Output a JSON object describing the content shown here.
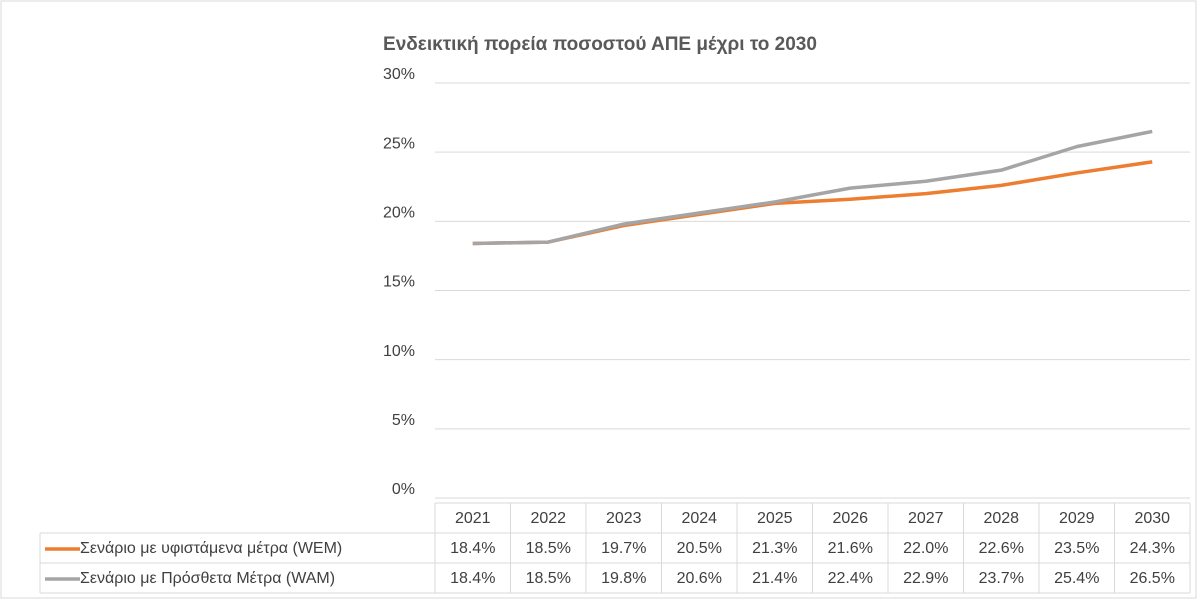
{
  "chart_data": {
    "type": "line",
    "title": "Ενδεικτική πορεία ποσοστού ΑΠΕ μέχρι το 2030",
    "categories": [
      "2021",
      "2022",
      "2023",
      "2024",
      "2025",
      "2026",
      "2027",
      "2028",
      "2029",
      "2030"
    ],
    "series": [
      {
        "name": "Σενάριο με υφιστάμενα μέτρα (WEM)",
        "color": "#ed7d31",
        "values": [
          18.4,
          18.5,
          19.7,
          20.5,
          21.3,
          21.6,
          22.0,
          22.6,
          23.5,
          24.3
        ],
        "value_labels": [
          "18.4%",
          "18.5%",
          "19.7%",
          "20.5%",
          "21.3%",
          "21.6%",
          "22.0%",
          "22.6%",
          "23.5%",
          "24.3%"
        ]
      },
      {
        "name": "Σενάριο με Πρόσθετα Μέτρα (WAM)",
        "color": "#a5a5a5",
        "values": [
          18.4,
          18.5,
          19.8,
          20.6,
          21.4,
          22.4,
          22.9,
          23.7,
          25.4,
          26.5
        ],
        "value_labels": [
          "18.4%",
          "18.5%",
          "19.8%",
          "20.6%",
          "21.4%",
          "22.4%",
          "22.9%",
          "23.7%",
          "25.4%",
          "26.5%"
        ]
      }
    ],
    "ylim": [
      0,
      30
    ],
    "yticks": [
      {
        "value": 0,
        "label": "0%"
      },
      {
        "value": 5,
        "label": "5%"
      },
      {
        "value": 10,
        "label": "10%"
      },
      {
        "value": 15,
        "label": "15%"
      },
      {
        "value": 20,
        "label": "20%"
      },
      {
        "value": 25,
        "label": "25%"
      },
      {
        "value": 30,
        "label": "30%"
      }
    ],
    "grid": true,
    "data_table": true
  }
}
